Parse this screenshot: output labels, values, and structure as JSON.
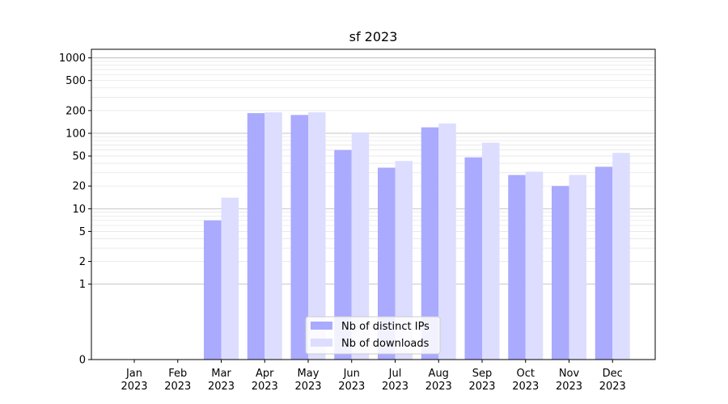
{
  "chart_data": {
    "type": "bar",
    "title": "sf 2023",
    "xlabel": "",
    "ylabel": "",
    "y_scale": "symlog",
    "ylim": [
      0,
      1300
    ],
    "y_ticks": [
      0,
      1,
      2,
      5,
      10,
      20,
      50,
      100,
      200,
      500,
      1000
    ],
    "grid": true,
    "legend_position": "bottom-center",
    "categories": [
      [
        "Jan",
        "2023"
      ],
      [
        "Feb",
        "2023"
      ],
      [
        "Mar",
        "2023"
      ],
      [
        "Apr",
        "2023"
      ],
      [
        "May",
        "2023"
      ],
      [
        "Jun",
        "2023"
      ],
      [
        "Jul",
        "2023"
      ],
      [
        "Aug",
        "2023"
      ],
      [
        "Sep",
        "2023"
      ],
      [
        "Oct",
        "2023"
      ],
      [
        "Nov",
        "2023"
      ],
      [
        "Dec",
        "2023"
      ]
    ],
    "series": [
      {
        "name": "Nb of distinct IPs",
        "color": "#aaaaff",
        "values": [
          0,
          0,
          7,
          185,
          175,
          60,
          35,
          120,
          48,
          28,
          20,
          36
        ]
      },
      {
        "name": "Nb of downloads",
        "color": "#ddddff",
        "values": [
          0,
          0,
          14,
          190,
          190,
          103,
          43,
          135,
          75,
          31,
          28,
          55
        ]
      }
    ]
  }
}
